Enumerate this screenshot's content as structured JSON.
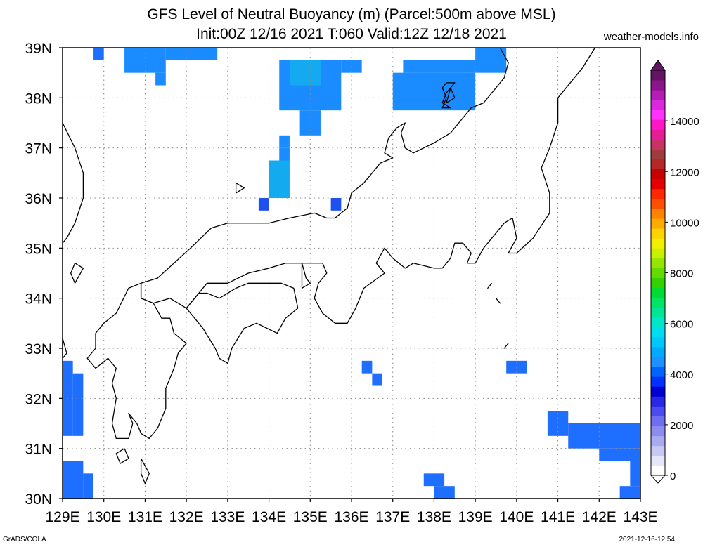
{
  "title_line1": "GFS Level of Neutral Buoyancy (m) (Parcel:500m above MSL)",
  "title_line2": "Init:00Z 12/16 2021 T:060 Valid:12Z 12/18 2021",
  "site": "weather-models.info",
  "footer_left": "GrADS/COLA",
  "footer_right": "2021-12-16-12:54",
  "map": {
    "lon_min": 129,
    "lon_max": 143,
    "lat_min": 30,
    "lat_max": 39,
    "x_tick_labels": [
      "129E",
      "130E",
      "131E",
      "132E",
      "133E",
      "134E",
      "135E",
      "136E",
      "137E",
      "138E",
      "139E",
      "140E",
      "141E",
      "142E",
      "143E"
    ],
    "y_tick_labels": [
      "30N",
      "31N",
      "32N",
      "33N",
      "34N",
      "35N",
      "36N",
      "37N",
      "38N",
      "39N"
    ],
    "grid": true
  },
  "colorbar": {
    "labels": [
      "0",
      "2000",
      "4000",
      "6000",
      "8000",
      "10000",
      "12000",
      "14000"
    ],
    "colors": [
      "#ffffff",
      "#e6e6fa",
      "#c8c8f5",
      "#aaaaf0",
      "#8c8cf0",
      "#6e6ef0",
      "#4b4bf0",
      "#2828e6",
      "#0000d2",
      "#0032ff",
      "#0064ff",
      "#1e90ff",
      "#00aaff",
      "#00c8ff",
      "#00dcf0",
      "#00e6c8",
      "#00e696",
      "#00e664",
      "#00dc32",
      "#32d200",
      "#64dc00",
      "#96e600",
      "#c8f000",
      "#f0f000",
      "#ffd200",
      "#ffaa00",
      "#ff8200",
      "#ff5000",
      "#ff2800",
      "#e60000",
      "#c80000",
      "#b42828",
      "#a03c3c",
      "#c83264",
      "#e61e96",
      "#ff14c8",
      "#ff32ff",
      "#dc28dc",
      "#b41eb4",
      "#8c148c",
      "#641464"
    ]
  },
  "buoyancy_cells": [
    {
      "lat_min": 38.75,
      "lat_max": 39.0,
      "lon_min": 129.75,
      "lon_max": 130.0,
      "color": "#1e6eff"
    },
    {
      "lat_min": 38.5,
      "lat_max": 39.0,
      "lon_min": 130.5,
      "lon_max": 131.5,
      "color": "#1a8cff"
    },
    {
      "lat_min": 38.75,
      "lat_max": 39.0,
      "lon_min": 131.5,
      "lon_max": 132.75,
      "color": "#1a8cff"
    },
    {
      "lat_min": 38.25,
      "lat_max": 38.5,
      "lon_min": 131.25,
      "lon_max": 131.5,
      "color": "#1a8cff"
    },
    {
      "lat_min": 37.75,
      "lat_max": 38.75,
      "lon_min": 134.25,
      "lon_max": 135.75,
      "color": "#1a8cff"
    },
    {
      "lat_min": 38.5,
      "lat_max": 38.75,
      "lon_min": 135.75,
      "lon_max": 136.25,
      "color": "#1a8cff"
    },
    {
      "lat_min": 38.25,
      "lat_max": 38.75,
      "lon_min": 134.5,
      "lon_max": 135.25,
      "color": "#14aaf0"
    },
    {
      "lat_min": 37.25,
      "lat_max": 37.75,
      "lon_min": 134.75,
      "lon_max": 135.25,
      "color": "#1a8cff"
    },
    {
      "lat_min": 37.0,
      "lat_max": 37.25,
      "lon_min": 134.25,
      "lon_max": 134.5,
      "color": "#1a8cff"
    },
    {
      "lat_min": 36.75,
      "lat_max": 37.0,
      "lon_min": 134.25,
      "lon_max": 134.5,
      "color": "#1a8cff"
    },
    {
      "lat_min": 36.0,
      "lat_max": 36.75,
      "lon_min": 134.0,
      "lon_max": 134.5,
      "color": "#14aaf0"
    },
    {
      "lat_min": 35.75,
      "lat_max": 36.0,
      "lon_min": 133.75,
      "lon_max": 134.0,
      "color": "#1e50f0"
    },
    {
      "lat_min": 35.75,
      "lat_max": 36.0,
      "lon_min": 135.5,
      "lon_max": 135.75,
      "color": "#1e50f0"
    },
    {
      "lat_min": 37.75,
      "lat_max": 38.5,
      "lon_min": 137.0,
      "lon_max": 139.0,
      "color": "#1a8cff"
    },
    {
      "lat_min": 38.5,
      "lat_max": 38.75,
      "lon_min": 137.25,
      "lon_max": 139.75,
      "color": "#1a8cff"
    },
    {
      "lat_min": 38.75,
      "lat_max": 39.0,
      "lon_min": 139.0,
      "lon_max": 139.75,
      "color": "#1a8cff"
    },
    {
      "lat_min": 32.5,
      "lat_max": 32.75,
      "lon_min": 136.25,
      "lon_max": 136.5,
      "color": "#1e6eff"
    },
    {
      "lat_min": 32.25,
      "lat_max": 32.5,
      "lon_min": 136.5,
      "lon_max": 136.75,
      "color": "#1e6eff"
    },
    {
      "lat_min": 32.5,
      "lat_max": 32.75,
      "lon_min": 139.75,
      "lon_max": 140.25,
      "color": "#1e6eff"
    },
    {
      "lat_min": 31.25,
      "lat_max": 32.75,
      "lon_min": 129.0,
      "lon_max": 129.25,
      "color": "#1e6eff"
    },
    {
      "lat_min": 31.25,
      "lat_max": 32.5,
      "lon_min": 129.25,
      "lon_max": 129.5,
      "color": "#1e6eff"
    },
    {
      "lat_min": 30.0,
      "lat_max": 30.75,
      "lon_min": 129.0,
      "lon_max": 129.5,
      "color": "#1e6eff"
    },
    {
      "lat_min": 30.0,
      "lat_max": 30.5,
      "lon_min": 129.5,
      "lon_max": 129.75,
      "color": "#1e6eff"
    },
    {
      "lat_min": 30.0,
      "lat_max": 30.25,
      "lon_min": 138.0,
      "lon_max": 138.5,
      "color": "#1e6eff"
    },
    {
      "lat_min": 30.25,
      "lat_max": 30.5,
      "lon_min": 137.75,
      "lon_max": 138.25,
      "color": "#1e6eff"
    },
    {
      "lat_min": 31.25,
      "lat_max": 31.75,
      "lon_min": 140.75,
      "lon_max": 141.25,
      "color": "#1e6eff"
    },
    {
      "lat_min": 31.0,
      "lat_max": 31.5,
      "lon_min": 141.25,
      "lon_max": 143.0,
      "color": "#1e6eff"
    },
    {
      "lat_min": 30.75,
      "lat_max": 31.0,
      "lon_min": 142.0,
      "lon_max": 143.0,
      "color": "#1e6eff"
    },
    {
      "lat_min": 30.25,
      "lat_max": 30.75,
      "lon_min": 142.75,
      "lon_max": 143.0,
      "color": "#1e6eff"
    },
    {
      "lat_min": 30.0,
      "lat_max": 30.25,
      "lon_min": 142.5,
      "lon_max": 143.0,
      "color": "#1e6eff"
    }
  ],
  "coastlines": [
    [
      [
        139.6,
        39.0
      ],
      [
        139.8,
        38.7
      ],
      [
        139.7,
        38.4
      ],
      [
        139.5,
        38.2
      ],
      [
        139.2,
        37.9
      ],
      [
        138.9,
        37.8
      ],
      [
        138.6,
        37.5
      ],
      [
        138.4,
        37.3
      ],
      [
        138.0,
        37.1
      ],
      [
        137.5,
        36.9
      ],
      [
        137.3,
        37.0
      ],
      [
        137.2,
        37.3
      ],
      [
        137.3,
        37.5
      ],
      [
        137.1,
        37.4
      ],
      [
        136.9,
        37.2
      ],
      [
        136.8,
        36.9
      ],
      [
        137.0,
        36.8
      ],
      [
        136.7,
        36.7
      ],
      [
        136.3,
        36.3
      ],
      [
        136.0,
        36.1
      ],
      [
        135.9,
        35.8
      ],
      [
        135.6,
        35.6
      ],
      [
        135.4,
        35.6
      ],
      [
        135.1,
        35.7
      ],
      [
        134.5,
        35.6
      ],
      [
        134.0,
        35.5
      ],
      [
        133.4,
        35.5
      ],
      [
        133.0,
        35.5
      ],
      [
        132.6,
        35.4
      ],
      [
        132.1,
        35.0
      ],
      [
        131.7,
        34.7
      ],
      [
        131.3,
        34.4
      ],
      [
        130.9,
        34.3
      ],
      [
        130.9,
        34.0
      ],
      [
        131.2,
        33.9
      ],
      [
        131.6,
        34.0
      ],
      [
        132.0,
        33.8
      ],
      [
        132.3,
        34.1
      ],
      [
        132.5,
        34.3
      ],
      [
        133.0,
        34.3
      ],
      [
        133.5,
        34.5
      ],
      [
        134.0,
        34.6
      ],
      [
        134.4,
        34.7
      ],
      [
        134.8,
        34.7
      ],
      [
        135.3,
        34.7
      ],
      [
        135.4,
        34.5
      ],
      [
        135.2,
        34.3
      ],
      [
        135.1,
        34.0
      ],
      [
        135.3,
        33.7
      ],
      [
        135.6,
        33.5
      ],
      [
        135.9,
        33.5
      ],
      [
        136.1,
        33.8
      ],
      [
        136.3,
        34.2
      ],
      [
        136.8,
        34.5
      ],
      [
        136.6,
        34.7
      ],
      [
        136.8,
        35.0
      ],
      [
        137.0,
        34.8
      ],
      [
        137.3,
        34.6
      ],
      [
        137.5,
        34.7
      ],
      [
        138.0,
        34.6
      ],
      [
        138.2,
        34.6
      ],
      [
        138.4,
        34.8
      ],
      [
        138.5,
        35.1
      ],
      [
        138.7,
        35.1
      ],
      [
        138.9,
        34.9
      ],
      [
        138.8,
        34.7
      ],
      [
        139.0,
        34.7
      ],
      [
        139.2,
        35.0
      ],
      [
        139.5,
        35.3
      ],
      [
        139.7,
        35.5
      ],
      [
        139.9,
        35.6
      ],
      [
        140.0,
        35.2
      ],
      [
        139.8,
        34.9
      ],
      [
        140.0,
        34.9
      ],
      [
        140.4,
        35.2
      ],
      [
        140.8,
        35.7
      ],
      [
        140.8,
        36.1
      ],
      [
        140.6,
        36.6
      ],
      [
        140.8,
        37.0
      ],
      [
        141.0,
        37.5
      ],
      [
        141.0,
        38.0
      ],
      [
        141.3,
        38.3
      ],
      [
        141.6,
        38.6
      ],
      [
        141.9,
        39.0
      ]
    ],
    [
      [
        130.9,
        34.3
      ],
      [
        130.6,
        34.2
      ],
      [
        130.3,
        33.7
      ],
      [
        130.0,
        33.5
      ],
      [
        129.8,
        33.3
      ],
      [
        129.8,
        33.0
      ],
      [
        129.6,
        32.8
      ],
      [
        129.8,
        32.6
      ],
      [
        130.1,
        32.8
      ],
      [
        130.3,
        32.6
      ],
      [
        130.2,
        32.3
      ],
      [
        130.3,
        32.0
      ],
      [
        130.2,
        31.5
      ],
      [
        130.3,
        31.2
      ],
      [
        130.6,
        31.2
      ],
      [
        130.7,
        31.5
      ],
      [
        130.6,
        31.7
      ],
      [
        130.8,
        31.5
      ],
      [
        130.9,
        31.3
      ],
      [
        131.1,
        31.2
      ],
      [
        131.3,
        31.4
      ],
      [
        131.5,
        31.8
      ],
      [
        131.5,
        32.2
      ],
      [
        131.7,
        32.6
      ],
      [
        131.8,
        32.9
      ],
      [
        132.0,
        33.1
      ],
      [
        131.7,
        33.3
      ],
      [
        131.6,
        33.6
      ],
      [
        131.4,
        33.6
      ],
      [
        131.2,
        33.9
      ],
      [
        130.9,
        34.0
      ],
      [
        130.9,
        34.3
      ]
    ],
    [
      [
        132.0,
        33.8
      ],
      [
        132.2,
        33.6
      ],
      [
        132.4,
        33.4
      ],
      [
        132.7,
        33.0
      ],
      [
        132.8,
        32.8
      ],
      [
        133.0,
        32.7
      ],
      [
        133.1,
        33.0
      ],
      [
        133.4,
        33.4
      ],
      [
        133.7,
        33.5
      ],
      [
        134.2,
        33.3
      ],
      [
        134.4,
        33.6
      ],
      [
        134.7,
        33.8
      ],
      [
        134.6,
        34.2
      ],
      [
        134.3,
        34.3
      ],
      [
        133.9,
        34.3
      ],
      [
        133.5,
        34.3
      ],
      [
        133.2,
        34.2
      ],
      [
        132.8,
        34.0
      ],
      [
        132.5,
        34.1
      ],
      [
        132.3,
        34.1
      ],
      [
        132.0,
        33.8
      ]
    ],
    [
      [
        134.8,
        34.7
      ],
      [
        134.9,
        34.4
      ],
      [
        135.0,
        34.3
      ],
      [
        134.8,
        34.2
      ],
      [
        134.8,
        34.7
      ]
    ],
    [
      [
        133.2,
        36.3
      ],
      [
        133.4,
        36.2
      ],
      [
        133.2,
        36.1
      ],
      [
        133.2,
        36.3
      ]
    ],
    [
      [
        130.5,
        31.0
      ],
      [
        130.6,
        30.8
      ],
      [
        130.4,
        30.7
      ],
      [
        130.3,
        30.9
      ],
      [
        130.5,
        31.0
      ]
    ],
    [
      [
        130.9,
        30.8
      ],
      [
        131.1,
        30.5
      ],
      [
        131.0,
        30.3
      ],
      [
        130.9,
        30.5
      ],
      [
        130.9,
        30.8
      ]
    ],
    [
      [
        138.3,
        38.3
      ],
      [
        138.5,
        38.3
      ],
      [
        138.3,
        38.1
      ],
      [
        138.2,
        37.9
      ],
      [
        138.4,
        37.8
      ],
      [
        138.2,
        37.8
      ],
      [
        138.3,
        38.0
      ],
      [
        138.2,
        38.2
      ],
      [
        138.3,
        38.3
      ]
    ],
    [
      [
        138.4,
        38.2
      ],
      [
        138.5,
        38.0
      ],
      [
        138.3,
        37.9
      ],
      [
        138.4,
        38.2
      ]
    ],
    [
      [
        129.3,
        34.7
      ],
      [
        129.5,
        34.6
      ],
      [
        129.3,
        34.3
      ],
      [
        129.2,
        34.5
      ],
      [
        129.3,
        34.7
      ]
    ],
    [
      [
        129.0,
        33.2
      ],
      [
        129.1,
        32.9
      ],
      [
        129.0,
        32.8
      ],
      [
        129.0,
        33.2
      ]
    ],
    [
      [
        139.4,
        34.3
      ],
      [
        139.3,
        34.2
      ],
      [
        139.4,
        34.3
      ]
    ],
    [
      [
        139.5,
        34.0
      ],
      [
        139.6,
        33.9
      ],
      [
        139.5,
        34.0
      ]
    ],
    [
      [
        139.8,
        33.1
      ],
      [
        139.7,
        33.0
      ],
      [
        139.8,
        33.1
      ]
    ]
  ],
  "coastlines_open": [
    [
      [
        129.0,
        37.5
      ],
      [
        129.3,
        37.0
      ],
      [
        129.5,
        36.5
      ],
      [
        129.5,
        36.0
      ],
      [
        129.3,
        35.5
      ],
      [
        129.1,
        35.2
      ],
      [
        129.0,
        35.1
      ]
    ]
  ]
}
